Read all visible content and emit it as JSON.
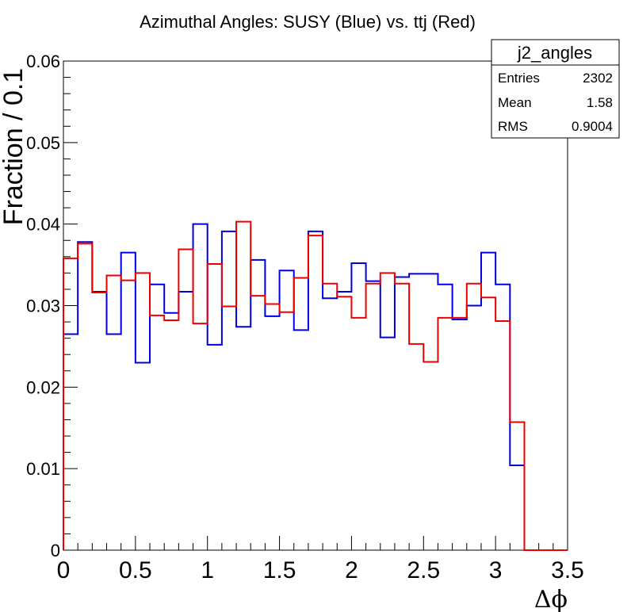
{
  "chart_data": {
    "type": "histogram",
    "title": "Azimuthal Angles: SUSY (Blue) vs. ttj (Red)",
    "xlabel": "Δϕ",
    "ylabel": "Fraction / 0.1",
    "xlim": [
      0,
      3.5
    ],
    "ylim": [
      0,
      0.06
    ],
    "x_ticks": [
      "0",
      "0.5",
      "1",
      "1.5",
      "2",
      "2.5",
      "3",
      "3.5"
    ],
    "y_ticks": [
      "0",
      "0.01",
      "0.02",
      "0.03",
      "0.04",
      "0.05",
      "0.06"
    ],
    "bin_width": 0.1,
    "series": [
      {
        "name": "SUSY",
        "color": "#0000dd",
        "values": [
          0.0265,
          0.0378,
          0.0317,
          0.0265,
          0.0365,
          0.023,
          0.0326,
          0.0291,
          0.0317,
          0.04,
          0.0252,
          0.0391,
          0.0274,
          0.0356,
          0.0287,
          0.0343,
          0.027,
          0.0391,
          0.0309,
          0.0317,
          0.0352,
          0.033,
          0.0261,
          0.0335,
          0.0339,
          0.0339,
          0.0326,
          0.0283,
          0.03,
          0.0365,
          0.0326,
          0.0104,
          0.0,
          0.0,
          0.0
        ]
      },
      {
        "name": "ttj",
        "color": "#ee0000",
        "values": [
          0.0358,
          0.0376,
          0.0316,
          0.0337,
          0.0331,
          0.034,
          0.0288,
          0.0282,
          0.0369,
          0.0278,
          0.0351,
          0.0299,
          0.0403,
          0.0312,
          0.0302,
          0.0292,
          0.0334,
          0.0386,
          0.0327,
          0.0311,
          0.0285,
          0.0327,
          0.034,
          0.0327,
          0.0253,
          0.0231,
          0.0285,
          0.0285,
          0.0327,
          0.031,
          0.0281,
          0.0157,
          0.0,
          0.0,
          0.0
        ]
      }
    ],
    "stats_box": {
      "name": "j2_angles",
      "rows": [
        {
          "label": "Entries",
          "value": "2302"
        },
        {
          "label": "Mean",
          "value": "1.58"
        },
        {
          "label": "RMS",
          "value": "0.9004"
        }
      ]
    }
  }
}
